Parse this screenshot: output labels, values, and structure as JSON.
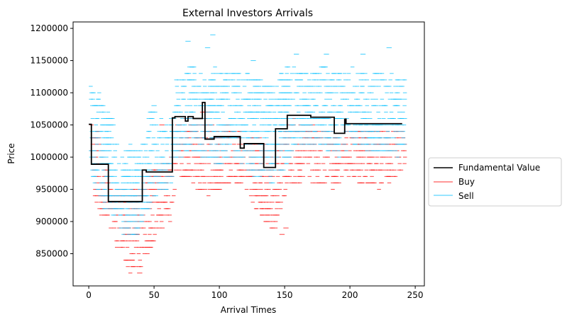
{
  "chart_data": {
    "type": "line",
    "title": "External Investors Arrivals",
    "xlabel": "Arrival Times",
    "ylabel": "Price",
    "xlim": [
      -12,
      257
    ],
    "ylim": [
      800000,
      1210000
    ],
    "xticks": [
      0,
      50,
      100,
      150,
      200,
      250
    ],
    "yticks": [
      850000,
      900000,
      950000,
      1000000,
      1050000,
      1100000,
      1150000,
      1200000
    ],
    "grid": false,
    "legend_position": "center-right-outside",
    "legend": [
      {
        "label": "Fundamental Value",
        "color": "#000000"
      },
      {
        "label": "Buy",
        "color": "#ff0000"
      },
      {
        "label": "Sell",
        "color": "#00bfff"
      }
    ],
    "fundamental_value": {
      "name": "Fundamental Value",
      "color": "#000000",
      "x": [
        0,
        2,
        2,
        15,
        15,
        41,
        41,
        44,
        44,
        64,
        64,
        66,
        66,
        74,
        74,
        76,
        76,
        80,
        80,
        87,
        87,
        89,
        89,
        96,
        96,
        116,
        116,
        119,
        119,
        134,
        134,
        143,
        143,
        152,
        152,
        170,
        170,
        188,
        188,
        196,
        196,
        197,
        197,
        240
      ],
      "y": [
        1051000,
        1051000,
        989000,
        989000,
        931000,
        931000,
        980000,
        980000,
        977000,
        977000,
        1061000,
        1061000,
        1063000,
        1063000,
        1056000,
        1056000,
        1063000,
        1063000,
        1060000,
        1060000,
        1085000,
        1085000,
        1028000,
        1028000,
        1032000,
        1032000,
        1014000,
        1014000,
        1021000,
        1021000,
        984000,
        984000,
        1044000,
        1044000,
        1065000,
        1065000,
        1062000,
        1062000,
        1037000,
        1037000,
        1059000,
        1059000,
        1052000,
        1052000
      ]
    },
    "buy": {
      "name": "Buy",
      "color": "#ff0000",
      "price_step": 10000,
      "segment_length": 3,
      "opacity": 0.75,
      "envelope": {
        "x": [
          0,
          5,
          10,
          15,
          20,
          25,
          30,
          35,
          40,
          45,
          50,
          55,
          60,
          65,
          70,
          75,
          80,
          85,
          90,
          95,
          100,
          105,
          110,
          115,
          120,
          125,
          130,
          135,
          140,
          145,
          150,
          155,
          160,
          165,
          170,
          175,
          180,
          185,
          190,
          195,
          200,
          205,
          210,
          215,
          220,
          225,
          230,
          235,
          240
        ],
        "ymin": [
          1000000,
          900000,
          910000,
          890000,
          850000,
          840000,
          820000,
          830000,
          830000,
          850000,
          880000,
          890000,
          900000,
          960000,
          970000,
          960000,
          950000,
          950000,
          940000,
          950000,
          950000,
          960000,
          960000,
          960000,
          940000,
          920000,
          910000,
          890000,
          880000,
          920000,
          950000,
          960000,
          960000,
          960000,
          960000,
          950000,
          960000,
          950000,
          960000,
          970000,
          970000,
          960000,
          950000,
          960000,
          950000,
          960000,
          960000,
          970000,
          990000
        ],
        "ymax": [
          1050000,
          1040000,
          1000000,
          960000,
          950000,
          950000,
          950000,
          950000,
          950000,
          980000,
          980000,
          990000,
          990000,
          1050000,
          1060000,
          1060000,
          1060000,
          1070000,
          1070000,
          1040000,
          1050000,
          1050000,
          1040000,
          1040000,
          1030000,
          1030000,
          1030000,
          1020000,
          1010000,
          1040000,
          1050000,
          1060000,
          1050000,
          1050000,
          1050000,
          1040000,
          1040000,
          1040000,
          1030000,
          1040000,
          1040000,
          1040000,
          1040000,
          1040000,
          1040000,
          1040000,
          1040000,
          1040000,
          1040000
        ]
      },
      "outliers": [
        [
          37,
          820000
        ],
        [
          28,
          840000
        ],
        [
          149,
          890000
        ],
        [
          146,
          880000
        ],
        [
          54,
          1050000
        ],
        [
          131,
          910000
        ]
      ]
    },
    "sell": {
      "name": "Sell",
      "color": "#00bfff",
      "price_step": 10000,
      "segment_length": 3,
      "opacity": 0.75,
      "envelope": {
        "x": [
          0,
          5,
          10,
          15,
          20,
          25,
          30,
          35,
          40,
          45,
          50,
          55,
          60,
          65,
          70,
          75,
          80,
          85,
          90,
          95,
          100,
          105,
          110,
          115,
          120,
          125,
          130,
          135,
          140,
          145,
          150,
          155,
          160,
          165,
          170,
          175,
          180,
          185,
          190,
          195,
          200,
          205,
          210,
          215,
          220,
          225,
          230,
          235,
          240
        ],
        "ymin": [
          970000,
          950000,
          920000,
          910000,
          900000,
          880000,
          880000,
          880000,
          900000,
          920000,
          940000,
          950000,
          950000,
          1000000,
          1000000,
          1010000,
          1010000,
          1000000,
          990000,
          990000,
          990000,
          1000000,
          1000000,
          990000,
          980000,
          970000,
          970000,
          960000,
          960000,
          970000,
          990000,
          1010000,
          1020000,
          1020000,
          1020000,
          1020000,
          1010000,
          1010000,
          1000000,
          1010000,
          1020000,
          1020000,
          1010000,
          1010000,
          1010000,
          1010000,
          1010000,
          1000000,
          1010000
        ],
        "ymax": [
          1120000,
          1110000,
          1080000,
          1070000,
          1020000,
          1010000,
          1030000,
          1010000,
          1030000,
          1070000,
          1070000,
          1060000,
          1050000,
          1120000,
          1130000,
          1140000,
          1140000,
          1130000,
          1120000,
          1140000,
          1130000,
          1140000,
          1130000,
          1130000,
          1130000,
          1120000,
          1120000,
          1110000,
          1110000,
          1130000,
          1140000,
          1140000,
          1130000,
          1140000,
          1130000,
          1140000,
          1140000,
          1130000,
          1130000,
          1130000,
          1140000,
          1130000,
          1140000,
          1130000,
          1130000,
          1130000,
          1130000,
          1120000,
          1120000
        ]
      },
      "outliers": [
        [
          93,
          1190000
        ],
        [
          74,
          1180000
        ],
        [
          89,
          1170000
        ],
        [
          228,
          1170000
        ],
        [
          157,
          1160000
        ],
        [
          180,
          1160000
        ],
        [
          208,
          1160000
        ],
        [
          48,
          1080000
        ],
        [
          124,
          1150000
        ]
      ]
    }
  }
}
